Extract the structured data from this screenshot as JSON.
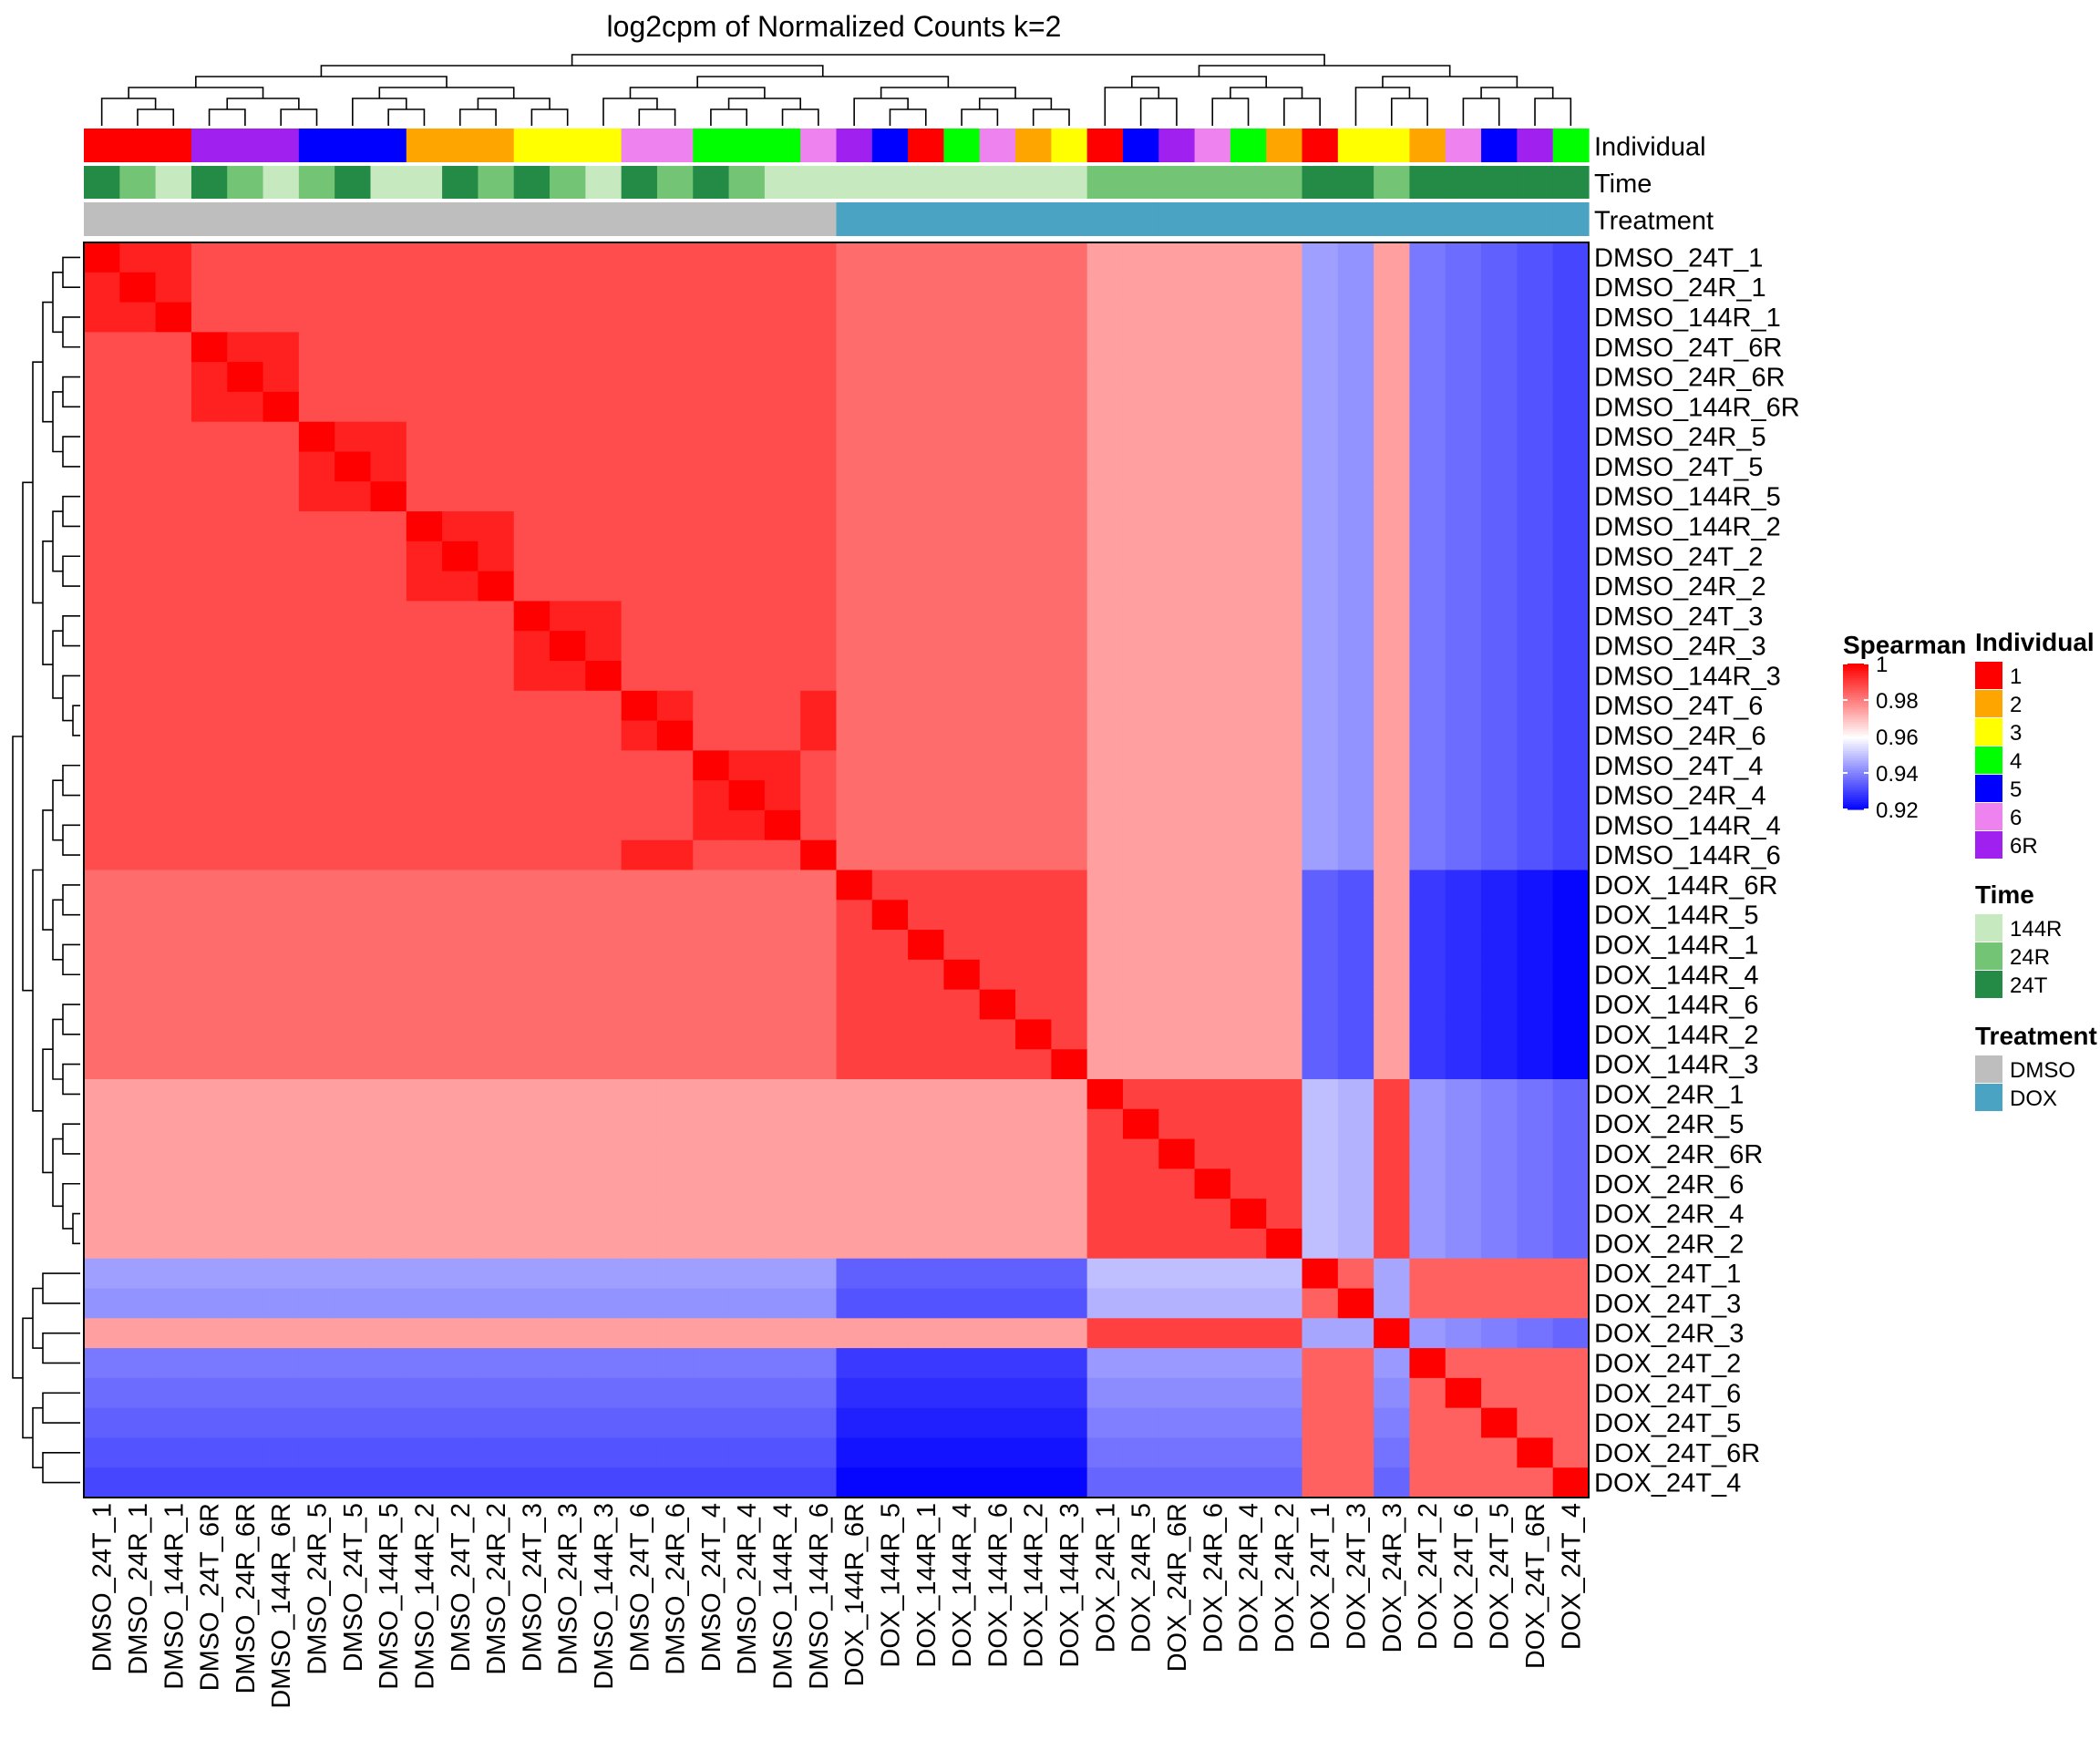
{
  "chart_data": {
    "type": "heatmap",
    "title": "log2cpm of Normalized Counts k=2",
    "samples": [
      "DMSO_24T_1",
      "DMSO_24R_1",
      "DMSO_144R_1",
      "DMSO_24T_6R",
      "DMSO_24R_6R",
      "DMSO_144R_6R",
      "DMSO_24R_5",
      "DMSO_24T_5",
      "DMSO_144R_5",
      "DMSO_144R_2",
      "DMSO_24T_2",
      "DMSO_24R_2",
      "DMSO_24T_3",
      "DMSO_24R_3",
      "DMSO_144R_3",
      "DMSO_24T_6",
      "DMSO_24R_6",
      "DMSO_24T_4",
      "DMSO_24R_4",
      "DMSO_144R_4",
      "DMSO_144R_6",
      "DOX_144R_6R",
      "DOX_144R_5",
      "DOX_144R_1",
      "DOX_144R_4",
      "DOX_144R_6",
      "DOX_144R_2",
      "DOX_144R_3",
      "DOX_24R_1",
      "DOX_24R_5",
      "DOX_24R_6R",
      "DOX_24R_6",
      "DOX_24R_4",
      "DOX_24R_2",
      "DOX_24T_1",
      "DOX_24T_3",
      "DOX_24R_3",
      "DOX_24T_2",
      "DOX_24T_6",
      "DOX_24T_5",
      "DOX_24T_6R",
      "DOX_24T_4"
    ],
    "annotations": {
      "Individual": [
        "1",
        "1",
        "1",
        "6R",
        "6R",
        "6R",
        "5",
        "5",
        "5",
        "2",
        "2",
        "2",
        "3",
        "3",
        "3",
        "6",
        "6",
        "4",
        "4",
        "4",
        "6",
        "6R",
        "5",
        "1",
        "4",
        "6",
        "2",
        "3",
        "1",
        "5",
        "6R",
        "6",
        "4",
        "2",
        "1",
        "3",
        "3",
        "2",
        "6",
        "5",
        "6R",
        "4"
      ],
      "Time": [
        "24T",
        "24R",
        "144R",
        "24T",
        "24R",
        "144R",
        "24R",
        "24T",
        "144R",
        "144R",
        "24T",
        "24R",
        "24T",
        "24R",
        "144R",
        "24T",
        "24R",
        "24T",
        "24R",
        "144R",
        "144R",
        "144R",
        "144R",
        "144R",
        "144R",
        "144R",
        "144R",
        "144R",
        "24R",
        "24R",
        "24R",
        "24R",
        "24R",
        "24R",
        "24T",
        "24T",
        "24R",
        "24T",
        "24T",
        "24T",
        "24T",
        "24T"
      ],
      "Treatment": [
        "DMSO",
        "DMSO",
        "DMSO",
        "DMSO",
        "DMSO",
        "DMSO",
        "DMSO",
        "DMSO",
        "DMSO",
        "DMSO",
        "DMSO",
        "DMSO",
        "DMSO",
        "DMSO",
        "DMSO",
        "DMSO",
        "DMSO",
        "DMSO",
        "DMSO",
        "DMSO",
        "DMSO",
        "DOX",
        "DOX",
        "DOX",
        "DOX",
        "DOX",
        "DOX",
        "DOX",
        "DOX",
        "DOX",
        "DOX",
        "DOX",
        "DOX",
        "DOX",
        "DOX",
        "DOX",
        "DOX",
        "DOX",
        "DOX",
        "DOX",
        "DOX",
        "DOX"
      ]
    },
    "annotation_labels": [
      "Individual",
      "Time",
      "Treatment"
    ],
    "cluster_k": 2,
    "value_range": [
      0.92,
      1
    ],
    "block_approx_values": {
      "_description_note": "approximate Spearman correlation by sample group (DMSO, DOX_144R, DOX_24R, DOX_24T)",
      "groups": [
        "DMSO",
        "DOX_144R",
        "DOX_24R",
        "DOX_24T"
      ],
      "matrix": [
        [
          0.988,
          0.983,
          0.975,
          0.945
        ],
        [
          0.983,
          0.99,
          0.975,
          0.935
        ],
        [
          0.975,
          0.975,
          0.99,
          0.95
        ],
        [
          0.945,
          0.935,
          0.95,
          0.985
        ]
      ]
    }
  },
  "legend": {
    "spearman": {
      "title": "Spearman",
      "ticks": [
        "1",
        "0.98",
        "0.96",
        "0.94",
        "0.92"
      ],
      "tick_values": [
        1,
        0.98,
        0.96,
        0.94,
        0.92
      ],
      "colors": {
        "high": "#ff0000",
        "mid": "#ffffff",
        "low": "#0000ff"
      }
    },
    "individual": {
      "title": "Individual",
      "items": [
        {
          "label": "1",
          "color": "#ff0000"
        },
        {
          "label": "2",
          "color": "#ffa500"
        },
        {
          "label": "3",
          "color": "#ffff00"
        },
        {
          "label": "4",
          "color": "#00ff00"
        },
        {
          "label": "5",
          "color": "#0000ff"
        },
        {
          "label": "6",
          "color": "#ee82ee"
        },
        {
          "label": "6R",
          "color": "#a020f0"
        }
      ]
    },
    "time": {
      "title": "Time",
      "items": [
        {
          "label": "144R",
          "color": "#c7e9c0"
        },
        {
          "label": "24R",
          "color": "#74c476"
        },
        {
          "label": "24T",
          "color": "#238b45"
        }
      ]
    },
    "treatment": {
      "title": "Treatment",
      "items": [
        {
          "label": "DMSO",
          "color": "#bebebe"
        },
        {
          "label": "DOX",
          "color": "#4ba3c3"
        }
      ]
    }
  }
}
